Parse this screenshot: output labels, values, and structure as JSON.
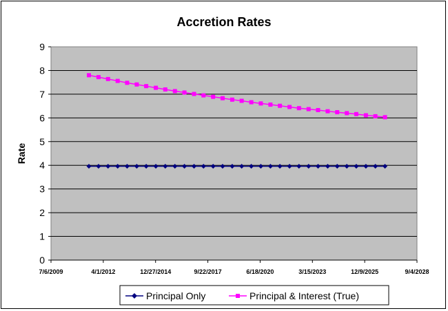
{
  "chart_data": {
    "type": "line",
    "title": "Accretion Rates",
    "xlabel": "",
    "ylabel": "Rate",
    "ylim": [
      0,
      9
    ],
    "yticks": [
      "0",
      "1",
      "2",
      "3",
      "4",
      "5",
      "6",
      "7",
      "8",
      "9"
    ],
    "xticks": [
      "7/6/2009",
      "4/1/2012",
      "12/27/2014",
      "9/22/2017",
      "6/18/2020",
      "3/15/2023",
      "12/9/2025",
      "9/4/2028"
    ],
    "grid": true,
    "legend_position": "bottom",
    "x_start": "2011-07",
    "x_step_months": 6,
    "series": [
      {
        "name": "Principal Only",
        "color": "#000080",
        "marker": "diamond",
        "values": [
          3.96,
          3.96,
          3.96,
          3.96,
          3.96,
          3.96,
          3.96,
          3.96,
          3.96,
          3.96,
          3.96,
          3.96,
          3.96,
          3.96,
          3.96,
          3.96,
          3.96,
          3.96,
          3.96,
          3.96,
          3.96,
          3.96,
          3.96,
          3.96,
          3.96,
          3.96,
          3.96,
          3.96,
          3.96,
          3.96,
          3.96,
          3.96
        ]
      },
      {
        "name": "Principal & Interest (True)",
        "color": "#ff00ff",
        "marker": "square",
        "values": [
          7.8,
          7.72,
          7.64,
          7.56,
          7.48,
          7.41,
          7.34,
          7.27,
          7.2,
          7.13,
          7.07,
          7.01,
          6.95,
          6.89,
          6.83,
          6.77,
          6.72,
          6.66,
          6.61,
          6.56,
          6.51,
          6.46,
          6.41,
          6.37,
          6.33,
          6.28,
          6.24,
          6.2,
          6.16,
          6.11,
          6.07,
          6.03
        ]
      }
    ]
  }
}
